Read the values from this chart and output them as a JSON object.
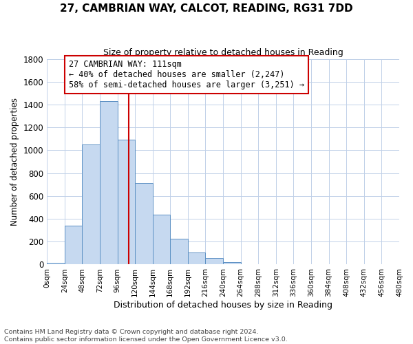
{
  "title": "27, CAMBRIAN WAY, CALCOT, READING, RG31 7DD",
  "subtitle": "Size of property relative to detached houses in Reading",
  "xlabel": "Distribution of detached houses by size in Reading",
  "ylabel": "Number of detached properties",
  "bin_edges": [
    0,
    24,
    48,
    72,
    96,
    120,
    144,
    168,
    192,
    216,
    240,
    264,
    288,
    312,
    336,
    360,
    384,
    408,
    432,
    456,
    480
  ],
  "bar_heights": [
    15,
    340,
    1050,
    1430,
    1095,
    715,
    435,
    225,
    105,
    55,
    20,
    5,
    2,
    1,
    0,
    0,
    0,
    0,
    0,
    0
  ],
  "bar_color": "#c6d9f0",
  "bar_edgecolor": "#5a8fc3",
  "vline_x": 111,
  "vline_color": "#cc0000",
  "annotation_line1": "27 CAMBRIAN WAY: 111sqm",
  "annotation_line2": "← 40% of detached houses are smaller (2,247)",
  "annotation_line3": "58% of semi-detached houses are larger (3,251) →",
  "annotation_box_edgecolor": "#cc0000",
  "annotation_box_facecolor": "#ffffff",
  "ylim": [
    0,
    1800
  ],
  "yticks": [
    0,
    200,
    400,
    600,
    800,
    1000,
    1200,
    1400,
    1600,
    1800
  ],
  "xtick_labels": [
    "0sqm",
    "24sqm",
    "48sqm",
    "72sqm",
    "96sqm",
    "120sqm",
    "144sqm",
    "168sqm",
    "192sqm",
    "216sqm",
    "240sqm",
    "264sqm",
    "288sqm",
    "312sqm",
    "336sqm",
    "360sqm",
    "384sqm",
    "408sqm",
    "432sqm",
    "456sqm",
    "480sqm"
  ],
  "footer_line1": "Contains HM Land Registry data © Crown copyright and database right 2024.",
  "footer_line2": "Contains public sector information licensed under the Open Government Licence v3.0.",
  "background_color": "#ffffff",
  "grid_color": "#c0d0e8",
  "title_fontsize": 11,
  "subtitle_fontsize": 9,
  "ylabel_fontsize": 8.5,
  "xlabel_fontsize": 9,
  "annotation_fontsize": 8.5,
  "footer_fontsize": 6.8
}
